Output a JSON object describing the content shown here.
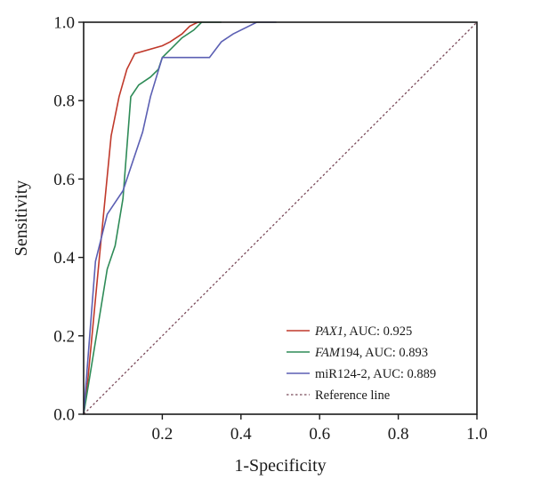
{
  "chart_data": {
    "type": "line",
    "title": "",
    "xlabel": "1-Specificity",
    "ylabel": "Sensitivity",
    "xlim": [
      0,
      1
    ],
    "ylim": [
      0,
      1
    ],
    "x_ticks": [
      "0.2",
      "0.4",
      "0.6",
      "0.8",
      "1.0"
    ],
    "y_ticks": [
      "0.0",
      "0.2",
      "0.4",
      "0.6",
      "0.8",
      "1.0"
    ],
    "legend_position": "bottom-right",
    "grid": false,
    "series": [
      {
        "name": "PAX1",
        "name_rest": ", AUC: 0.925",
        "name_italic": true,
        "color": "#c0392b",
        "points": [
          [
            0,
            0
          ],
          [
            0.01,
            0.08
          ],
          [
            0.04,
            0.4
          ],
          [
            0.07,
            0.71
          ],
          [
            0.09,
            0.81
          ],
          [
            0.11,
            0.88
          ],
          [
            0.13,
            0.92
          ],
          [
            0.2,
            0.94
          ],
          [
            0.22,
            0.95
          ],
          [
            0.25,
            0.97
          ],
          [
            0.27,
            0.99
          ],
          [
            0.29,
            1.0
          ],
          [
            0.3,
            1.0
          ]
        ]
      },
      {
        "name": "FAM",
        "name_rest": "194, AUC: 0.893",
        "name_italic": true,
        "color": "#2e8b57",
        "points": [
          [
            0,
            0
          ],
          [
            0.06,
            0.37
          ],
          [
            0.08,
            0.43
          ],
          [
            0.1,
            0.55
          ],
          [
            0.12,
            0.81
          ],
          [
            0.14,
            0.84
          ],
          [
            0.17,
            0.86
          ],
          [
            0.19,
            0.88
          ],
          [
            0.2,
            0.91
          ],
          [
            0.22,
            0.93
          ],
          [
            0.25,
            0.96
          ],
          [
            0.28,
            0.98
          ],
          [
            0.3,
            1.0
          ],
          [
            0.35,
            1.0
          ]
        ]
      },
      {
        "name": "miR124-2, AUC: 0.889",
        "name_rest": "",
        "name_italic": false,
        "color": "#5b5fb3",
        "points": [
          [
            0,
            0
          ],
          [
            0.03,
            0.39
          ],
          [
            0.06,
            0.51
          ],
          [
            0.1,
            0.57
          ],
          [
            0.12,
            0.63
          ],
          [
            0.15,
            0.72
          ],
          [
            0.17,
            0.81
          ],
          [
            0.2,
            0.91
          ],
          [
            0.32,
            0.91
          ],
          [
            0.35,
            0.95
          ],
          [
            0.38,
            0.97
          ],
          [
            0.44,
            1.0
          ],
          [
            0.49,
            1.0
          ]
        ]
      },
      {
        "name": "Reference line",
        "name_rest": "",
        "name_italic": false,
        "color": "#7a4a5a",
        "dashed": true,
        "points": [
          [
            0,
            0
          ],
          [
            1,
            1
          ]
        ]
      }
    ]
  }
}
